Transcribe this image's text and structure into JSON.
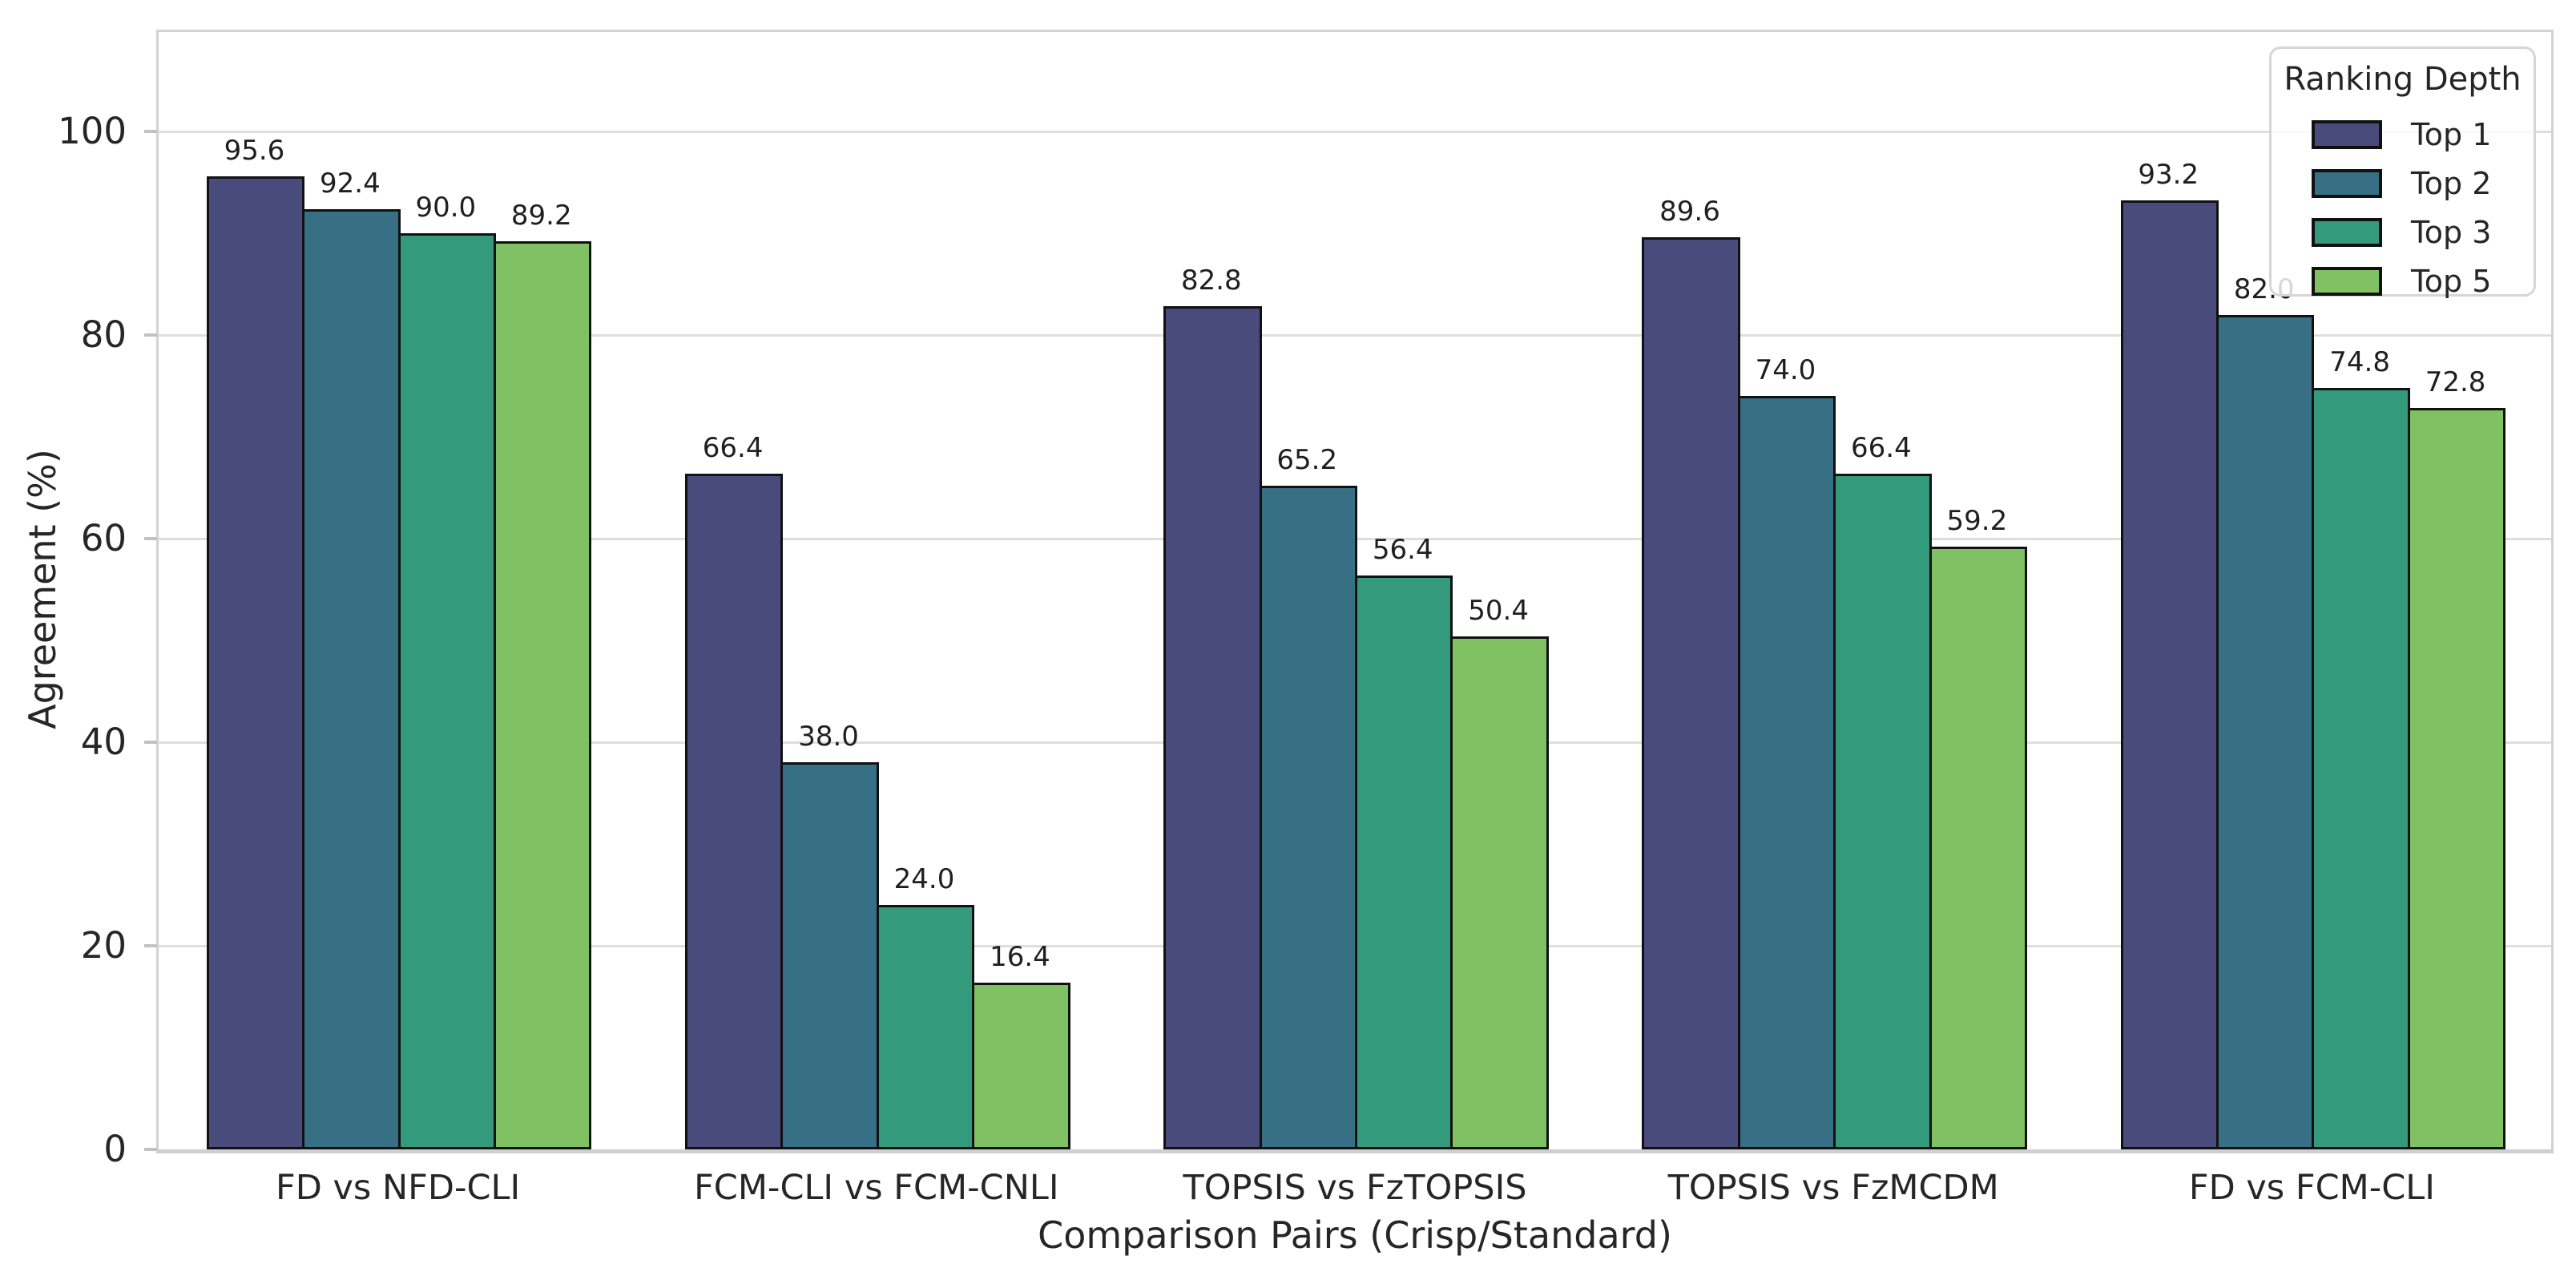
{
  "chart_data": {
    "type": "bar",
    "title": "",
    "xlabel": "Comparison Pairs (Crisp/Standard)",
    "ylabel": "Agreement (%)",
    "categories": [
      "FD vs NFD-CLI",
      "FCM-CLI vs FCM-CNLI",
      "TOPSIS vs FzTOPSIS",
      "TOPSIS vs FzMCDM",
      "FD vs FCM-CLI"
    ],
    "series": [
      {
        "name": "Top 1",
        "color": "#4a4b7d",
        "values": [
          95.6,
          66.4,
          82.8,
          89.6,
          93.2
        ]
      },
      {
        "name": "Top 2",
        "color": "#376f85",
        "values": [
          92.4,
          38.0,
          65.2,
          74.0,
          82.0
        ]
      },
      {
        "name": "Top 3",
        "color": "#339a7b",
        "values": [
          90.0,
          24.0,
          56.4,
          66.4,
          74.8
        ]
      },
      {
        "name": "Top 5",
        "color": "#80c163",
        "values": [
          89.2,
          16.4,
          50.4,
          59.2,
          72.8
        ]
      }
    ],
    "ylim": [
      0,
      110
    ],
    "yticks": [
      0,
      20,
      40,
      60,
      80,
      100
    ],
    "grid": true,
    "bar_edge_color": "#111111",
    "value_labels_decimals": 1,
    "legend": {
      "title": "Ranking Depth",
      "position": "upper right",
      "entries": [
        "Top 1",
        "Top 2",
        "Top 3",
        "Top 5"
      ]
    }
  }
}
